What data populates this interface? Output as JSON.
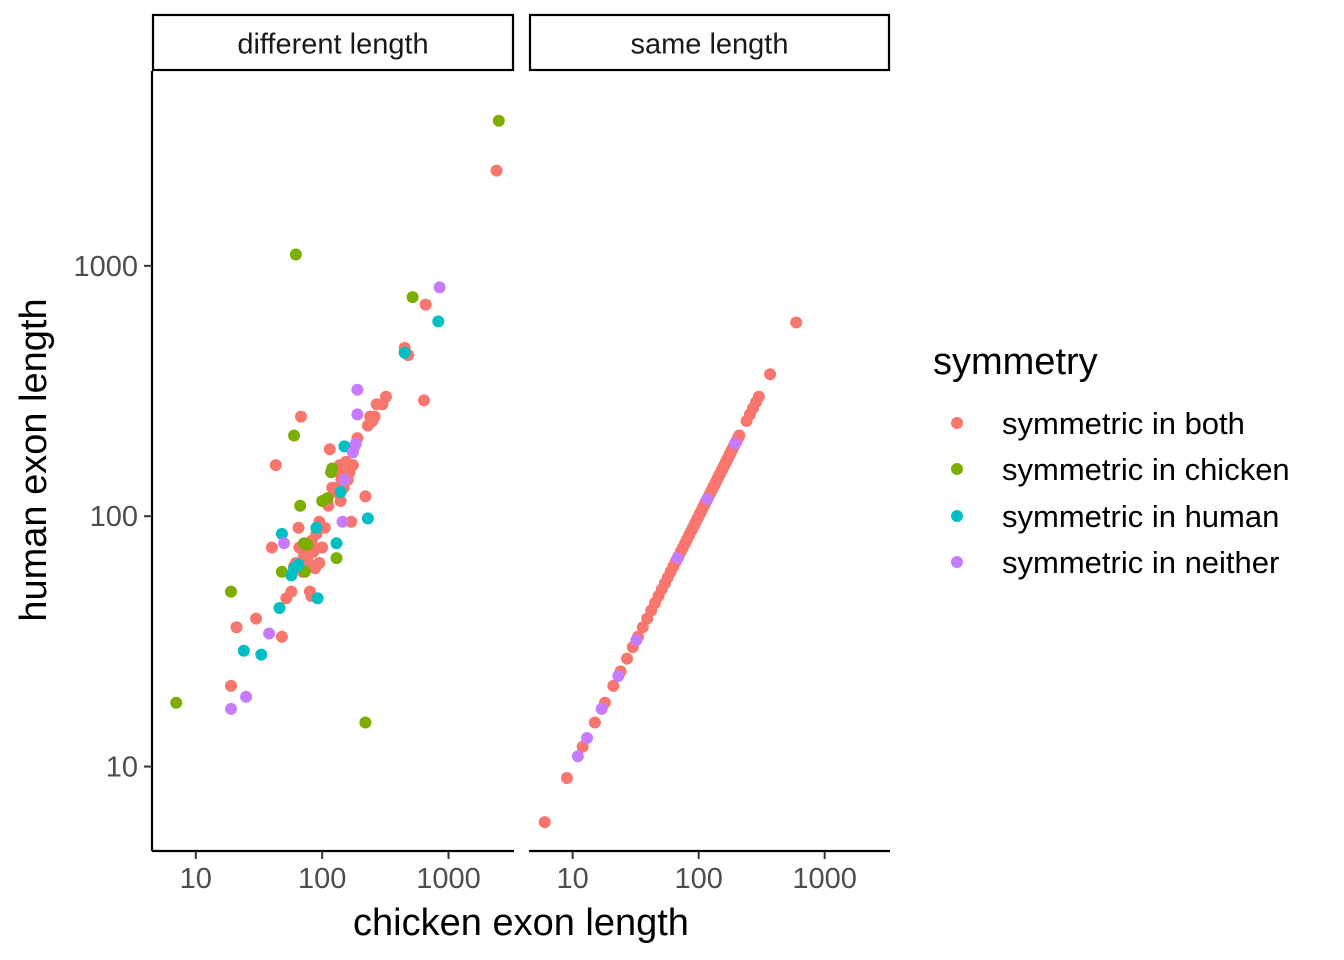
{
  "chart_data": {
    "type": "scatter",
    "xlabel": "chicken exon length",
    "ylabel": "human exon length",
    "x_scale": "log10",
    "y_scale": "log10",
    "xlim": [
      4.5,
      3300
    ],
    "ylim": [
      4.6,
      6000
    ],
    "x_ticks": [
      10,
      100,
      1000
    ],
    "x_tick_labels": [
      "10",
      "100",
      "1000"
    ],
    "y_ticks": [
      10,
      100,
      1000
    ],
    "y_tick_labels": [
      "10",
      "100",
      "1000"
    ],
    "grid": false,
    "legend": {
      "title": "symmetry",
      "position": "right",
      "entries": [
        {
          "label": "symmetric in both",
          "color": "#F8766D"
        },
        {
          "label": "symmetric in chicken",
          "color": "#7CAE00"
        },
        {
          "label": "symmetric in human",
          "color": "#00BFC4"
        },
        {
          "label": "symmetric in neither",
          "color": "#C77CFF"
        }
      ]
    },
    "facets": [
      {
        "label": "different length",
        "series": [
          {
            "name": "symmetric in both",
            "points": [
              [
                2400,
                2400
              ],
              [
                660,
                700
              ],
              [
                640,
                290
              ],
              [
                480,
                440
              ],
              [
                450,
                470
              ],
              [
                320,
                300
              ],
              [
                300,
                280
              ],
              [
                270,
                280
              ],
              [
                260,
                250
              ],
              [
                250,
                240
              ],
              [
                240,
                250
              ],
              [
                230,
                230
              ],
              [
                220,
                120
              ],
              [
                190,
                205
              ],
              [
                180,
                190
              ],
              [
                175,
                160
              ],
              [
                170,
                95
              ],
              [
                165,
                150
              ],
              [
                160,
                140
              ],
              [
                155,
                165
              ],
              [
                150,
                160
              ],
              [
                148,
                130
              ],
              [
                145,
                150
              ],
              [
                142,
                140
              ],
              [
                140,
                115
              ],
              [
                138,
                160
              ],
              [
                135,
                150
              ],
              [
                130,
                130
              ],
              [
                125,
                125
              ],
              [
                120,
                130
              ],
              [
                118,
                150
              ],
              [
                115,
                185
              ],
              [
                112,
                110
              ],
              [
                110,
                115
              ],
              [
                105,
                90
              ],
              [
                100,
                75
              ],
              [
                95,
                95
              ],
              [
                90,
                85
              ],
              [
                85,
                72
              ],
              [
                83,
                80
              ],
              [
                80,
                78
              ],
              [
                78,
                65
              ],
              [
                76,
                68
              ],
              [
                72,
                70
              ],
              [
                70,
                60
              ],
              [
                68,
                250
              ],
              [
                65,
                90
              ],
              [
                62,
                65
              ],
              [
                60,
                63
              ],
              [
                57,
                50
              ],
              [
                52,
                47
              ],
              [
                48,
                33
              ],
              [
                43,
                160
              ],
              [
                40,
                75
              ],
              [
                30,
                39
              ],
              [
                21,
                36
              ],
              [
                19,
                21
              ],
              [
                82,
                48
              ],
              [
                80,
                50
              ],
              [
                85,
                75
              ],
              [
                88,
                62
              ],
              [
                95,
                65
              ],
              [
                66,
                75
              ]
            ]
          },
          {
            "name": "symmetric in chicken",
            "points": [
              [
                2500,
                3800
              ],
              [
                520,
                750
              ],
              [
                62,
                1110
              ],
              [
                60,
                210
              ],
              [
                67,
                110
              ],
              [
                120,
                155
              ],
              [
                118,
                150
              ],
              [
                100,
                115
              ],
              [
                72,
                78
              ],
              [
                76,
                77
              ],
              [
                73,
                60
              ],
              [
                48,
                60
              ],
              [
                19,
                50
              ],
              [
                7,
                18
              ],
              [
                220,
                15
              ],
              [
                130,
                68
              ],
              [
                110,
                118
              ]
            ]
          },
          {
            "name": "symmetric in human",
            "points": [
              [
                830,
                600
              ],
              [
                450,
                450
              ],
              [
                230,
                98
              ],
              [
                150,
                190
              ],
              [
                140,
                125
              ],
              [
                130,
                78
              ],
              [
                90,
                90
              ],
              [
                92,
                47
              ],
              [
                65,
                64
              ],
              [
                60,
                62
              ],
              [
                57,
                58
              ],
              [
                48,
                85
              ],
              [
                46,
                43
              ],
              [
                33,
                28
              ],
              [
                24,
                29
              ]
            ]
          },
          {
            "name": "symmetric in neither",
            "points": [
              [
                850,
                820
              ],
              [
                190,
                320
              ],
              [
                190,
                255
              ],
              [
                185,
                195
              ],
              [
                175,
                180
              ],
              [
                150,
                140
              ],
              [
                145,
                95
              ],
              [
                50,
                78
              ],
              [
                38,
                34
              ],
              [
                25,
                19
              ],
              [
                19,
                17
              ]
            ]
          }
        ]
      },
      {
        "label": "same length",
        "series": [
          {
            "name": "symmetric in both",
            "points": [
              [
                6,
                6
              ],
              [
                9,
                9
              ],
              [
                12,
                12
              ],
              [
                15,
                15
              ],
              [
                18,
                18
              ],
              [
                21,
                21
              ],
              [
                24,
                24
              ],
              [
                27,
                27
              ],
              [
                30,
                30
              ],
              [
                33,
                33
              ],
              [
                36,
                36
              ],
              [
                39,
                39
              ],
              [
                42,
                42
              ],
              [
                45,
                45
              ],
              [
                48,
                48
              ],
              [
                51,
                51
              ],
              [
                54,
                54
              ],
              [
                57,
                57
              ],
              [
                60,
                60
              ],
              [
                63,
                63
              ],
              [
                66,
                66
              ],
              [
                69,
                69
              ],
              [
                72,
                72
              ],
              [
                75,
                75
              ],
              [
                78,
                78
              ],
              [
                81,
                81
              ],
              [
                84,
                84
              ],
              [
                87,
                87
              ],
              [
                90,
                90
              ],
              [
                93,
                93
              ],
              [
                96,
                96
              ],
              [
                99,
                99
              ],
              [
                102,
                102
              ],
              [
                105,
                105
              ],
              [
                108,
                108
              ],
              [
                111,
                111
              ],
              [
                114,
                114
              ],
              [
                117,
                117
              ],
              [
                120,
                120
              ],
              [
                123,
                123
              ],
              [
                126,
                126
              ],
              [
                129,
                129
              ],
              [
                132,
                132
              ],
              [
                135,
                135
              ],
              [
                138,
                138
              ],
              [
                141,
                141
              ],
              [
                144,
                144
              ],
              [
                147,
                147
              ],
              [
                150,
                150
              ],
              [
                153,
                153
              ],
              [
                156,
                156
              ],
              [
                159,
                159
              ],
              [
                162,
                162
              ],
              [
                165,
                165
              ],
              [
                168,
                168
              ],
              [
                171,
                171
              ],
              [
                174,
                174
              ],
              [
                177,
                177
              ],
              [
                180,
                180
              ],
              [
                183,
                183
              ],
              [
                186,
                186
              ],
              [
                189,
                189
              ],
              [
                192,
                192
              ],
              [
                195,
                195
              ],
              [
                198,
                198
              ],
              [
                201,
                201
              ],
              [
                204,
                204
              ],
              [
                207,
                207
              ],
              [
                210,
                210
              ],
              [
                240,
                240
              ],
              [
                255,
                255
              ],
              [
                270,
                270
              ],
              [
                285,
                285
              ],
              [
                300,
                300
              ],
              [
                369,
                369
              ],
              [
                594,
                594
              ]
            ]
          },
          {
            "name": "symmetric in neither",
            "points": [
              [
                11,
                11
              ],
              [
                13,
                13
              ],
              [
                17,
                17
              ],
              [
                23,
                23
              ],
              [
                32,
                32
              ],
              [
                68,
                68
              ],
              [
                117,
                117
              ],
              [
                195,
                195
              ]
            ]
          }
        ]
      }
    ]
  }
}
